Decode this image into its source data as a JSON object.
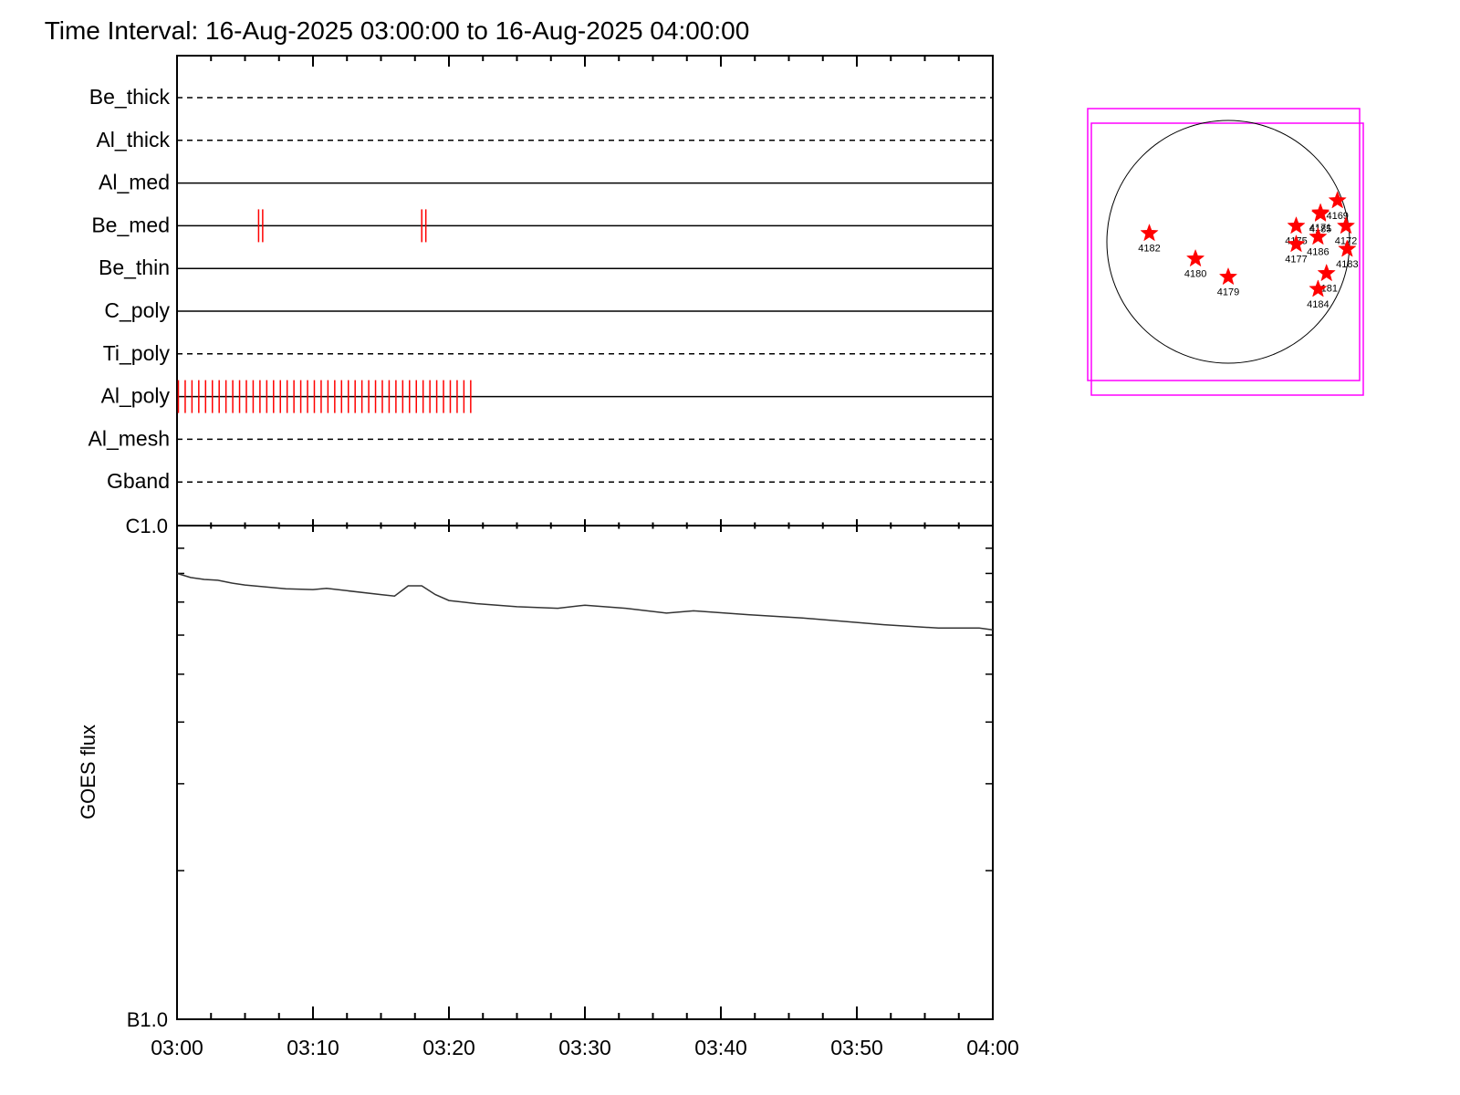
{
  "title": "Time Interval: 16-Aug-2025 03:00:00 to 16-Aug-2025 04:00:00",
  "colors": {
    "axis": "#000000",
    "marker": "#ff0000",
    "fov": "#ff00ff",
    "curve": "#333333"
  },
  "chart_data": [
    {
      "type": "timeline",
      "x_range": [
        "03:00",
        "04:00"
      ],
      "x_unit": "minutes after 03:00",
      "channels": [
        {
          "name": "Be_thick",
          "style": "dashed",
          "events": []
        },
        {
          "name": "Al_thick",
          "style": "dashed",
          "events": []
        },
        {
          "name": "Al_med",
          "style": "solid",
          "events": []
        },
        {
          "name": "Be_med",
          "style": "solid",
          "events": [
            6.0,
            6.3,
            18.0,
            18.3
          ]
        },
        {
          "name": "Be_thin",
          "style": "solid",
          "events": []
        },
        {
          "name": "C_poly",
          "style": "solid",
          "events": []
        },
        {
          "name": "Ti_poly",
          "style": "dashed",
          "events": []
        },
        {
          "name": "Al_poly",
          "style": "solid",
          "events_range": {
            "start": 0.1,
            "end": 22.0,
            "step": 0.5
          }
        },
        {
          "name": "Al_mesh",
          "style": "dashed",
          "events": []
        },
        {
          "name": "Gband",
          "style": "dashed",
          "events": []
        }
      ]
    },
    {
      "type": "line",
      "ylabel": "GOES flux",
      "y_scale": "log",
      "y_ticks": [
        "C1.0",
        "B1.0"
      ],
      "ylim": [
        1e-07,
        1e-06
      ],
      "x_tick_labels": [
        "03:00",
        "03:10",
        "03:20",
        "03:30",
        "03:40",
        "03:50",
        "04:00"
      ],
      "x_minutes": [
        0,
        1,
        2,
        3,
        4,
        5,
        8,
        10,
        11,
        15,
        16,
        17,
        18,
        19,
        20,
        22,
        25,
        28,
        30,
        33,
        36,
        38,
        42,
        46,
        52,
        56,
        59,
        60
      ],
      "y_flux": [
        8e-07,
        7.85e-07,
        7.78e-07,
        7.75e-07,
        7.65e-07,
        7.58e-07,
        7.45e-07,
        7.42e-07,
        7.46e-07,
        7.25e-07,
        7.2e-07,
        7.55e-07,
        7.55e-07,
        7.25e-07,
        7.05e-07,
        6.95e-07,
        6.85e-07,
        6.8e-07,
        6.9e-07,
        6.8e-07,
        6.65e-07,
        6.72e-07,
        6.6e-07,
        6.5e-07,
        6.3e-07,
        6.2e-07,
        6.2e-07,
        6.15e-07
      ]
    },
    {
      "type": "scatter",
      "description_labels": "active regions",
      "points": [
        {
          "label": "4182",
          "x": -0.65,
          "y": 0.07
        },
        {
          "label": "4180",
          "x": -0.27,
          "y": -0.14
        },
        {
          "label": "4179",
          "x": 0.0,
          "y": -0.29
        },
        {
          "label": "4169",
          "x": 0.9,
          "y": 0.34
        },
        {
          "label": "4171",
          "x": 0.76,
          "y": 0.24
        },
        {
          "label": "4185",
          "x": 0.76,
          "y": 0.23
        },
        {
          "label": "4175",
          "x": 0.56,
          "y": 0.13
        },
        {
          "label": "4172",
          "x": 0.97,
          "y": 0.13
        },
        {
          "label": "4186",
          "x": 0.74,
          "y": 0.04
        },
        {
          "label": "4177",
          "x": 0.56,
          "y": -0.02
        },
        {
          "label": "4183",
          "x": 0.98,
          "y": -0.06
        },
        {
          "label": "4181",
          "x": 0.81,
          "y": -0.26
        },
        {
          "label": "4184",
          "x": 0.74,
          "y": -0.39
        }
      ]
    }
  ]
}
